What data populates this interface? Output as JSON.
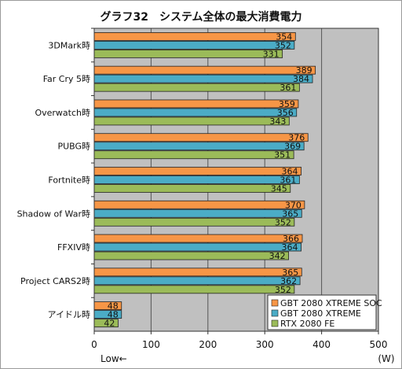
{
  "chart_data": {
    "type": "bar",
    "orientation": "horizontal",
    "title": "グラフ32　システム全体の最大消費電力",
    "categories": [
      "3DMark時",
      "Far Cry 5時",
      "Overwatch時",
      "PUBG時",
      "Fortnite時",
      "Shadow of War時",
      "FFXIV時",
      "Project CARS2時",
      "アイドル時"
    ],
    "series": [
      {
        "name": "GBT 2080 XTREME SOC",
        "color": "#f79646",
        "values": [
          354,
          389,
          359,
          376,
          364,
          370,
          366,
          365,
          48
        ]
      },
      {
        "name": "GBT 2080 XTREME",
        "color": "#4bacc6",
        "values": [
          352,
          384,
          356,
          369,
          361,
          365,
          364,
          362,
          48
        ]
      },
      {
        "name": "RTX 2080 FE",
        "color": "#9bbb59",
        "values": [
          331,
          361,
          343,
          351,
          345,
          352,
          342,
          352,
          42
        ]
      }
    ],
    "xlim": [
      0,
      500
    ],
    "xticks": [
      0,
      100,
      200,
      300,
      400,
      500
    ],
    "xlabel_left": "Low←",
    "xlabel_right": "(W)",
    "grid": true,
    "legend_position": "bottom-right",
    "plot_background": "#c0c0c0"
  }
}
